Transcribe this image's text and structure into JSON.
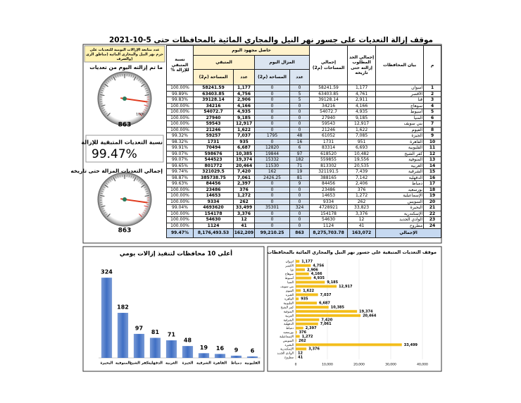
{
  "title": "موقف إزالة التعديات على جسور نهر النيل والمجاري المائية بالمحافظات حتى 5-10-2021",
  "sidebar": {
    "note": "عدد متابعة الإزالات اليومية للتعديات على حرم نهر النيل والمجاري المائية (مناطق الري والصرف)",
    "gauges": [
      {
        "title": "ما تم إزالته اليوم من تعديات",
        "value": 863,
        "max": 1000,
        "max_label": "1000"
      },
      {
        "title": "إجمالي التعديات المزالة حتى تاريخه",
        "value": 863,
        "max": 1000
      }
    ],
    "remaining_title": "نسبة التعديات المتبقية للإزالة",
    "remaining_value": "99.47%"
  },
  "table": {
    "headers": {
      "index": "م",
      "name": "بيان المحافظات",
      "required": "إجمالي الحد المطلوب إزالته حتى تاريخه",
      "total_area": "إجمالي المساحات (م2)",
      "group": "حاصل مجهود اليوم",
      "removed": "المزال اليوم",
      "remaining": "المتبقي",
      "count_1": "عدد",
      "area_1": "المساحة (م2)",
      "count_2": "عدد",
      "area_2": "المساحة (م2)",
      "pct": "نسبة المتبقي للإزالة %"
    },
    "rows": [
      [
        "1",
        "اسوان",
        "1,177",
        "58241.59",
        "0",
        "0",
        "1,177",
        "58241.59",
        "100.00%"
      ],
      [
        "2",
        "الأقصر",
        "4,761",
        "63403.85",
        "5",
        "0",
        "4,756",
        "63403.85",
        "99.89%"
      ],
      [
        "3",
        "قنا",
        "2,911",
        "39128.14",
        "5",
        "0",
        "2,906",
        "39128.14",
        "99.83%"
      ],
      [
        "4",
        "سوهاج",
        "4,166",
        "34216",
        "0",
        "0",
        "4,166",
        "34216",
        "100.00%"
      ],
      [
        "5",
        "أسيوط",
        "4,935",
        "54072.7",
        "0",
        "0",
        "4,935",
        "54072.7",
        "100.00%"
      ],
      [
        "6",
        "المنيا",
        "9,185",
        "27940",
        "0",
        "0",
        "9,185",
        "27940",
        "100.00%"
      ],
      [
        "7",
        "بني سويف",
        "12,917",
        "59543",
        "0",
        "0",
        "12,917",
        "59543",
        "100.00%"
      ],
      [
        "8",
        "الفيوم",
        "1,622",
        "21246",
        "0",
        "0",
        "1,622",
        "21246",
        "100.00%"
      ],
      [
        "9",
        "الجيزة",
        "7,085",
        "61052",
        "48",
        "1795",
        "7,037",
        "59257",
        "99.32%"
      ],
      [
        "10",
        "القاهرة",
        "951",
        "1731",
        "16",
        "0",
        "935",
        "1731",
        "98.32%"
      ],
      [
        "11",
        "القليوبية",
        "6,693",
        "83314",
        "6",
        "12820",
        "6,687",
        "70494",
        "99.91%"
      ],
      [
        "12",
        "كفر الشيخ",
        "10,482",
        "618520",
        "97",
        "19844",
        "10,385",
        "598676",
        "99.07%"
      ],
      [
        "13",
        "المنوفية",
        "19,556",
        "559855",
        "182",
        "15332",
        "19,374",
        "544523",
        "99.07%"
      ],
      [
        "14",
        "الغربية",
        "20,535",
        "813302",
        "71",
        "11530",
        "20,464",
        "801772",
        "99.65%"
      ],
      [
        "15",
        "الشرقية",
        "7,439",
        "321191.5",
        "19",
        "162",
        "7,420",
        "321029.5",
        "99.74%"
      ],
      [
        "16",
        "الدقهلية",
        "7,142",
        "388165",
        "81",
        "2426.25",
        "7,061",
        "385738.75",
        "98.87%"
      ],
      [
        "17",
        "دمياط",
        "2,406",
        "84456",
        "9",
        "0",
        "2,397",
        "84456",
        "99.63%"
      ],
      [
        "18",
        "بورسعيد",
        "376",
        "23486",
        "0",
        "0",
        "376",
        "23486",
        "100.00%"
      ],
      [
        "19",
        "الإسماعيلية",
        "1,272",
        "14653",
        "0",
        "0",
        "1,272",
        "14653",
        "100.00%"
      ],
      [
        "20",
        "السويس",
        "262",
        "9334",
        "0",
        "0",
        "262",
        "9334",
        "100.00%"
      ],
      [
        "21",
        "البحيرة",
        "33,823",
        "4728921",
        "324",
        "35301",
        "33,499",
        "4693620",
        "99.04%"
      ],
      [
        "22",
        "الإسكندرية",
        "3,376",
        "154178",
        "0",
        "0",
        "3,376",
        "154178",
        "100.00%"
      ],
      [
        "23",
        "الوادي الجديد",
        "12",
        "54630",
        "0",
        "0",
        "12",
        "54630",
        "100.00%"
      ],
      [
        "24",
        "مطروح",
        "41",
        "1124",
        "0",
        "0",
        "41",
        "1124",
        "100.00%"
      ]
    ],
    "total": {
      "label": "الإجمالي",
      "cells": [
        "163,072",
        "8,275,703.78",
        "863",
        "99,210.25",
        "162,209",
        "8,176,493.53",
        "99.47%"
      ]
    }
  },
  "chart_data": [
    {
      "type": "bar",
      "title": "أعلى 10 محافظات لتنفيذ إزالات يومي",
      "categories": [
        "البحيرة",
        "المنوفية",
        "كفر الشيخ",
        "الدقهلية",
        "الغربية",
        "الجيزة",
        "الشرقية",
        "القاهرة",
        "دمياط",
        "القليوبية"
      ],
      "values": [
        324,
        182,
        97,
        81,
        71,
        48,
        19,
        16,
        9,
        6
      ],
      "color": "#3f6fc4",
      "ylim": [
        0,
        350
      ]
    },
    {
      "type": "hbar",
      "title": "موقف التعديات المتبقية على جسور نهر النيل والمجاري المائية بالمحافظات",
      "categories": [
        "اسوان",
        "الأقصر",
        "قنا",
        "سوهاج",
        "أسيوط",
        "المنيا",
        "بني سويف",
        "الفيوم",
        "الجيزة",
        "القاهرة",
        "القليوبية",
        "كفر الشيخ",
        "المنوفية",
        "الغربية",
        "الشرقية",
        "الدقهلية",
        "دمياط",
        "بورسعيد",
        "الإسماعيلية",
        "السويس",
        "البحيرة",
        "الإسكندرية",
        "الوادي الجديد",
        "مطروح"
      ],
      "values": [
        1177,
        4756,
        2906,
        4166,
        4935,
        9185,
        12917,
        1622,
        7037,
        935,
        6687,
        10385,
        19374,
        20464,
        7420,
        7061,
        2397,
        376,
        1272,
        262,
        33499,
        3376,
        12,
        41
      ],
      "value_labels": [
        "1,177",
        "4,756",
        "2,906",
        "4,166",
        "4,935",
        "9,185",
        "12,917",
        "1,622",
        "7,037",
        "935",
        "6,687",
        "10,385",
        "19,374",
        "20,464",
        "7,420",
        "7,061",
        "2,397",
        "376",
        "1,272",
        "262",
        "33,499",
        "3,376",
        "12",
        "41"
      ],
      "color": "#f2b705",
      "xlim": [
        0,
        40000
      ],
      "xticks": [
        0,
        {
          "value": 10000,
          "label": "10,000"
        },
        {
          "value": 20000,
          "label": "20,000"
        },
        {
          "value": 30000,
          "label": "30,000"
        },
        {
          "value": 40000,
          "label": "40,000"
        }
      ]
    }
  ]
}
